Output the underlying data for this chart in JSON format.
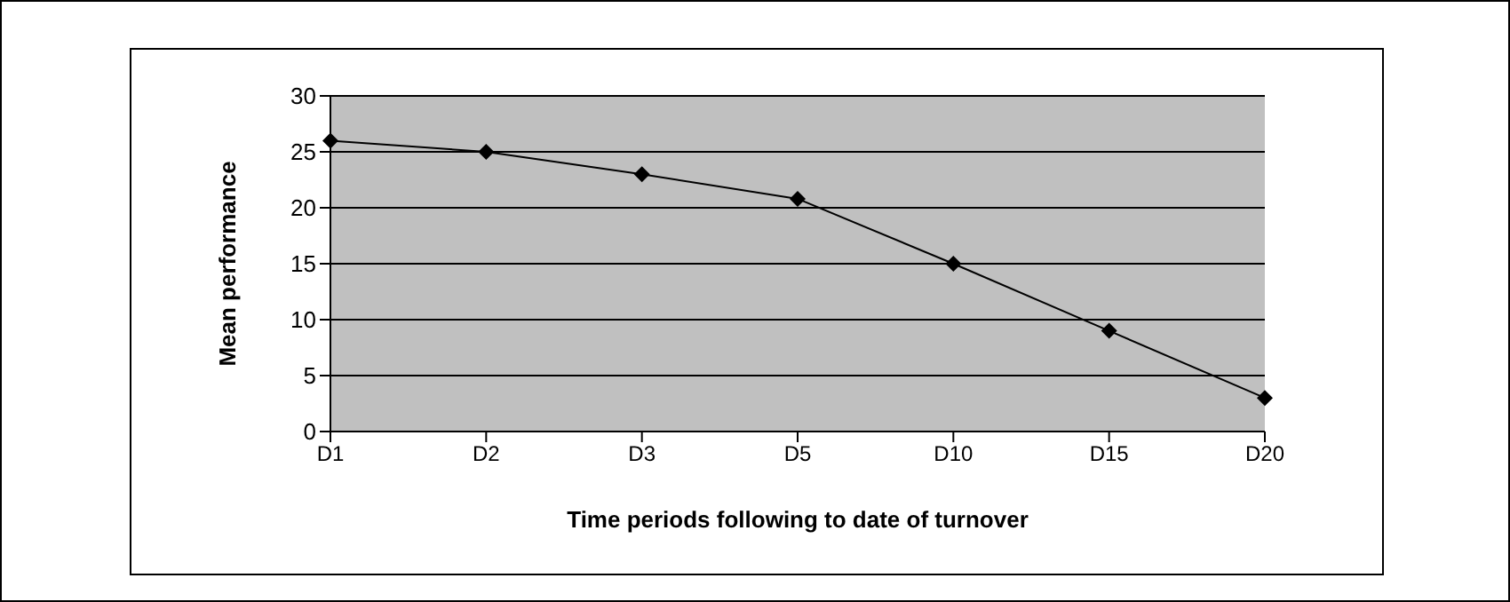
{
  "chart_data": {
    "type": "line",
    "xlabel": "Time periods following to date of turnover",
    "ylabel": "Mean performance",
    "categories": [
      "D1",
      "D2",
      "D3",
      "D5",
      "D10",
      "D15",
      "D20"
    ],
    "series": [
      {
        "color": "#000000",
        "values": [
          26,
          25,
          23,
          20.8,
          15,
          9,
          3
        ]
      }
    ],
    "ylim": [
      0,
      30
    ],
    "yticks": [
      0,
      5,
      10,
      15,
      20,
      25,
      30
    ],
    "grid": "y",
    "marker": "diamond",
    "line_style": "solid",
    "legend": false
  }
}
